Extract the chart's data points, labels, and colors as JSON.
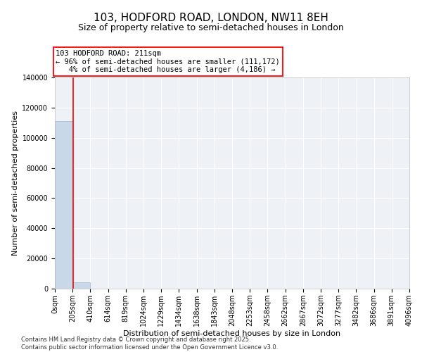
{
  "title": "103, HODFORD ROAD, LONDON, NW11 8EH",
  "subtitle": "Size of property relative to semi-detached houses in London",
  "xlabel": "Distribution of semi-detached houses by size in London",
  "ylabel": "Number of semi-detached properties",
  "property_size": 211,
  "annotation_text": "103 HODFORD ROAD: 211sqm\n← 96% of semi-detached houses are smaller (111,172)\n   4% of semi-detached houses are larger (4,186) →",
  "bar_color": "#c8d8e8",
  "bar_edge_color": "#a0b8cc",
  "vline_color": "red",
  "background_color": "#eef2f7",
  "bins": [
    0,
    205,
    410,
    614,
    819,
    1024,
    1229,
    1434,
    1638,
    1843,
    2048,
    2253,
    2458,
    2662,
    2867,
    3072,
    3277,
    3482,
    3686,
    3891,
    4096
  ],
  "bin_labels": [
    "0sqm",
    "205sqm",
    "410sqm",
    "614sqm",
    "819sqm",
    "1024sqm",
    "1229sqm",
    "1434sqm",
    "1638sqm",
    "1843sqm",
    "2048sqm",
    "2253sqm",
    "2458sqm",
    "2662sqm",
    "2867sqm",
    "3072sqm",
    "3277sqm",
    "3482sqm",
    "3686sqm",
    "3891sqm",
    "4096sqm"
  ],
  "counts": [
    111172,
    4186,
    100,
    30,
    12,
    5,
    3,
    2,
    1,
    1,
    0,
    0,
    0,
    0,
    0,
    0,
    0,
    0,
    0,
    0
  ],
  "ylim": [
    0,
    140000
  ],
  "yticks": [
    0,
    20000,
    40000,
    60000,
    80000,
    100000,
    120000,
    140000
  ],
  "footer": "Contains HM Land Registry data © Crown copyright and database right 2025.\nContains public sector information licensed under the Open Government Licence v3.0.",
  "title_fontsize": 11,
  "subtitle_fontsize": 9,
  "tick_fontsize": 7,
  "label_fontsize": 8,
  "annotation_fontsize": 7.5,
  "footer_fontsize": 6
}
